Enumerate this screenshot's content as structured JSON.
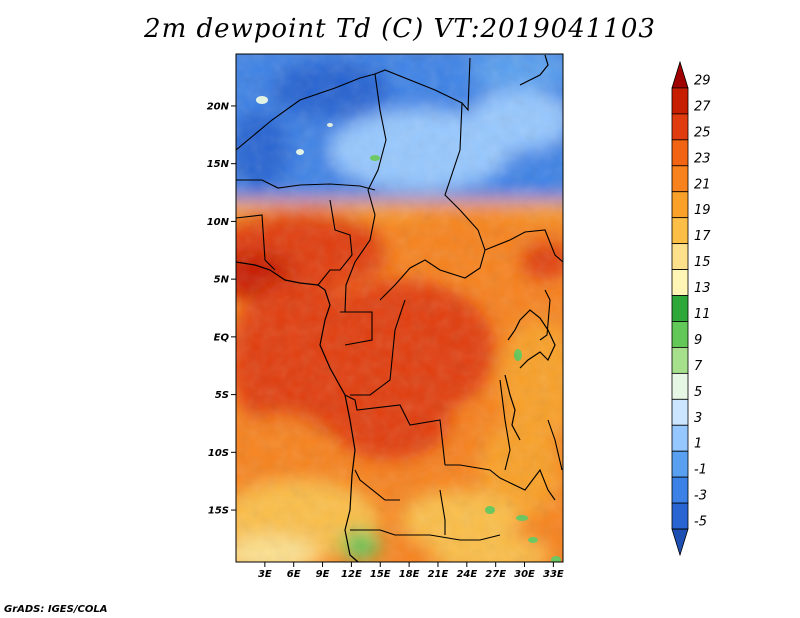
{
  "title": "2m dewpoint Td (C) VT:2019041103",
  "credit": "GrADS: IGES/COLA",
  "map": {
    "lat_range": [
      -19.5,
      24.5
    ],
    "lon_range": [
      0,
      34
    ],
    "lat_ticks": [
      "20N",
      "15N",
      "10N",
      "5N",
      "EQ",
      "5S",
      "10S",
      "15S"
    ],
    "lat_tick_values": [
      20,
      15,
      10,
      5,
      0,
      -5,
      -10,
      -15
    ],
    "lon_ticks": [
      "3E",
      "6E",
      "9E",
      "12E",
      "15E",
      "18E",
      "21E",
      "24E",
      "27E",
      "30E",
      "33E"
    ],
    "lon_tick_values": [
      3,
      6,
      9,
      12,
      15,
      18,
      21,
      24,
      27,
      30,
      33
    ]
  },
  "colorbar": {
    "labels": [
      "29",
      "27",
      "25",
      "23",
      "21",
      "19",
      "17",
      "15",
      "13",
      "11",
      "9",
      "7",
      "5",
      "3",
      "1",
      "-1",
      "-3",
      "-5"
    ],
    "colors": [
      "#a00000",
      "#c81e00",
      "#e13c10",
      "#f06414",
      "#f7821e",
      "#f9a028",
      "#fbbe46",
      "#fde08c",
      "#fff5b4",
      "#2fa83a",
      "#62c858",
      "#a6e08c",
      "#e6f7e6",
      "#cde6ff",
      "#96c8ff",
      "#5aa0f0",
      "#3c82e6",
      "#2864d2",
      "#1e50b4"
    ]
  }
}
